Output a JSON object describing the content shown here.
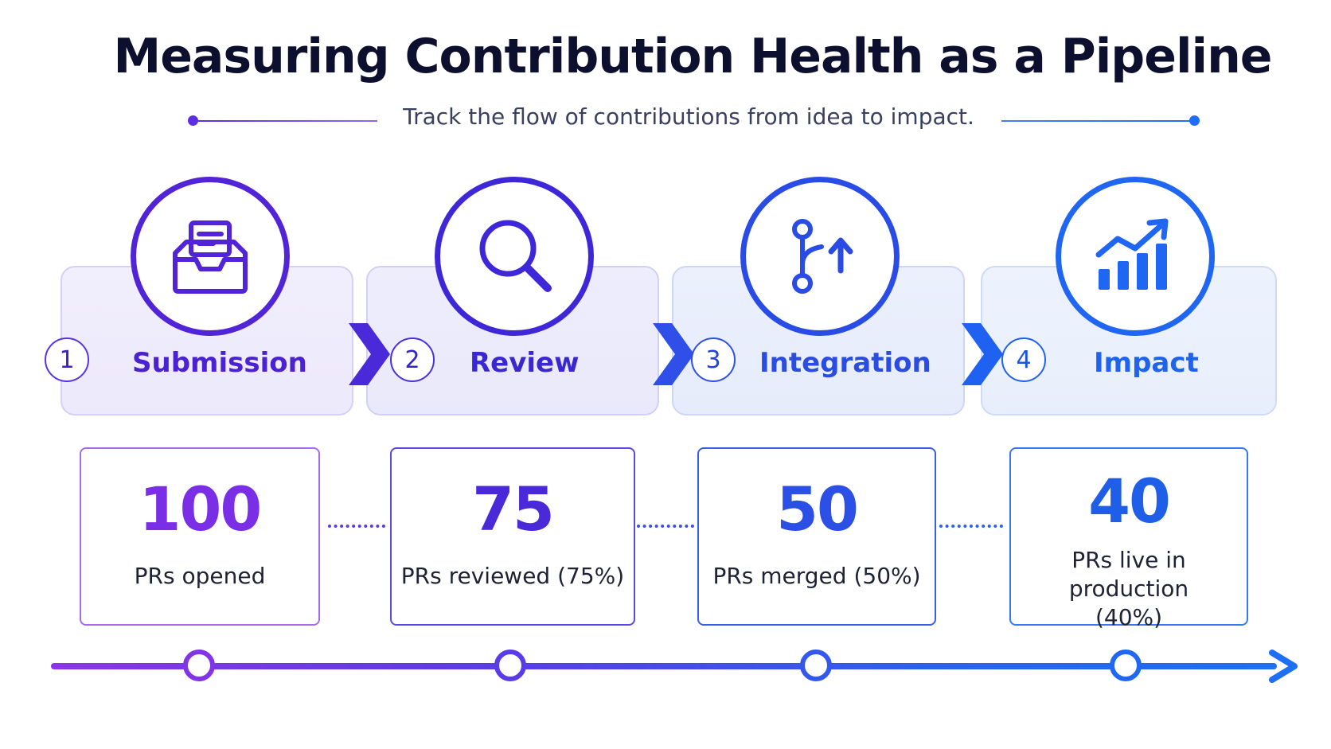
{
  "title": "Measuring Contribution Health as a Pipeline",
  "subtitle": "Track the flow of contributions from idea to impact.",
  "icons": {
    "submission": "inbox-tray-icon",
    "review": "magnifier-icon",
    "integration": "git-merge-icon",
    "impact": "growth-chart-icon"
  },
  "stages": [
    {
      "number": "1",
      "label": "Submission",
      "value": "100",
      "description": "PRs opened"
    },
    {
      "number": "2",
      "label": "Review",
      "value": "75",
      "description": "PRs reviewed (75%)"
    },
    {
      "number": "3",
      "label": "Integration",
      "value": "50",
      "description": "PRs merged (50%)"
    },
    {
      "number": "4",
      "label": "Impact",
      "value": "40",
      "description": "PRs live in production (40%)"
    }
  ],
  "colors": {
    "purple": "#7a2ee6",
    "indigo": "#4a2ad8",
    "blue": "#2c55ee",
    "bright_blue": "#1f6ef6",
    "title": "#0d0f2e"
  }
}
